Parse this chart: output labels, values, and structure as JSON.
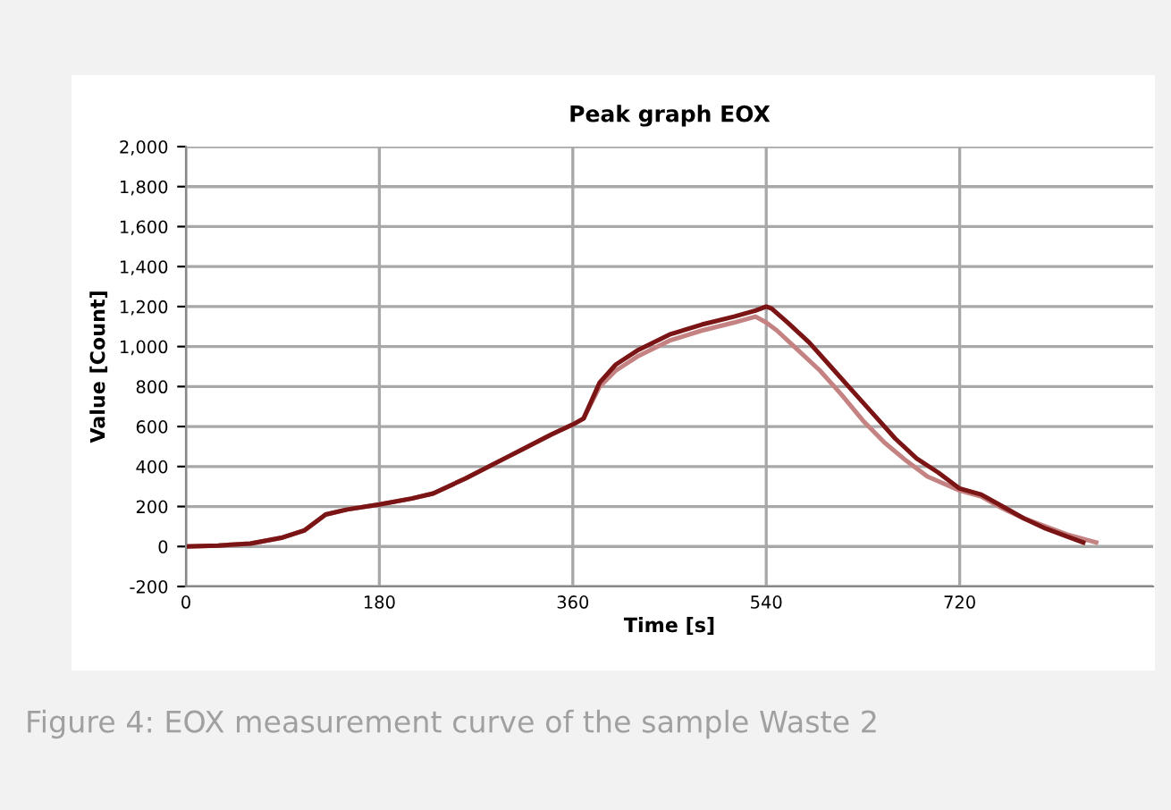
{
  "chart_data": {
    "type": "line",
    "title": "Peak graph EOX",
    "xlabel": "Time [s]",
    "ylabel": "Value [Count]",
    "annotations": [
      "Figure 4: EOX measurement curve of the sample Waste 2"
    ],
    "series": [
      {
        "color": "#c48282",
        "x": [
          0,
          30,
          60,
          90,
          110,
          130,
          150,
          180,
          210,
          230,
          260,
          300,
          340,
          360,
          370,
          385,
          400,
          420,
          450,
          480,
          510,
          530,
          540,
          550,
          570,
          590,
          610,
          630,
          650,
          670,
          690,
          720,
          740,
          760,
          780,
          800,
          820,
          847
        ],
        "values": [
          0,
          5,
          15,
          45,
          80,
          160,
          185,
          210,
          240,
          265,
          340,
          450,
          560,
          610,
          640,
          800,
          880,
          950,
          1030,
          1080,
          1120,
          1150,
          1120,
          1080,
          980,
          880,
          760,
          630,
          520,
          430,
          350,
          280,
          250,
          190,
          140,
          100,
          60,
          20
        ]
      },
      {
        "color": "#7b1414",
        "x": [
          0,
          30,
          60,
          90,
          110,
          130,
          150,
          180,
          210,
          230,
          260,
          300,
          340,
          360,
          370,
          385,
          400,
          420,
          450,
          480,
          510,
          530,
          540,
          545,
          560,
          580,
          600,
          620,
          640,
          660,
          680,
          700,
          720,
          740,
          760,
          780,
          800,
          820,
          835
        ],
        "values": [
          0,
          5,
          15,
          45,
          80,
          160,
          185,
          210,
          240,
          265,
          340,
          450,
          560,
          610,
          640,
          820,
          910,
          980,
          1060,
          1110,
          1150,
          1180,
          1200,
          1190,
          1120,
          1020,
          900,
          780,
          660,
          540,
          440,
          370,
          290,
          260,
          200,
          140,
          90,
          50,
          20
        ]
      }
    ],
    "xlim": [
      0,
      900
    ],
    "ylim": [
      -200,
      2000
    ],
    "xticks": [
      0,
      180,
      360,
      540,
      720
    ],
    "yticks": [
      {
        "value": -200,
        "label": "-200"
      },
      0,
      200,
      400,
      600,
      800,
      {
        "value": 1000,
        "label": "1,000"
      },
      {
        "value": 1200,
        "label": "1,200"
      },
      {
        "value": 1400,
        "label": "1,400"
      },
      {
        "value": 1600,
        "label": "1,600"
      },
      {
        "value": 1800,
        "label": "1,800"
      },
      {
        "value": 2000,
        "label": "2,000"
      }
    ],
    "grid": true,
    "legend": false
  }
}
